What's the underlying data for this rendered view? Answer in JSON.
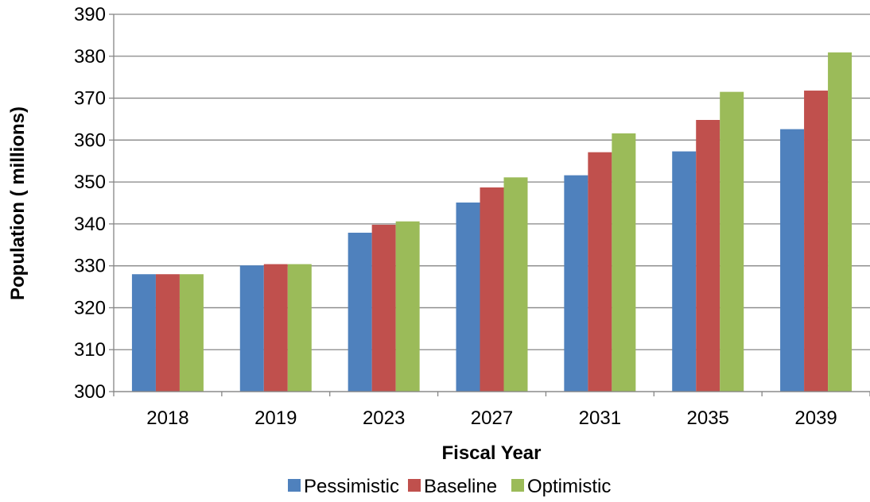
{
  "chart_data": {
    "type": "bar",
    "title": "",
    "xlabel": "Fiscal Year",
    "ylabel": "Population ( millions)",
    "categories": [
      "2018",
      "2019",
      "2023",
      "2027",
      "2031",
      "2035",
      "2039"
    ],
    "series": [
      {
        "name": "Pessimistic",
        "color": "#4F81BD",
        "values": [
          328.0,
          330.1,
          337.9,
          345.1,
          351.6,
          357.3,
          362.6
        ]
      },
      {
        "name": "Baseline",
        "color": "#C0504D",
        "values": [
          328.0,
          330.4,
          339.8,
          348.7,
          357.1,
          364.8,
          371.8
        ]
      },
      {
        "name": "Optimistic",
        "color": "#9BBB59",
        "values": [
          328.0,
          330.4,
          340.6,
          351.1,
          361.6,
          371.5,
          380.9
        ]
      }
    ],
    "ylim": [
      300,
      390
    ],
    "yticks": [
      300,
      310,
      320,
      330,
      340,
      350,
      360,
      370,
      380,
      390
    ],
    "grid": true,
    "legend_position": "bottom"
  }
}
